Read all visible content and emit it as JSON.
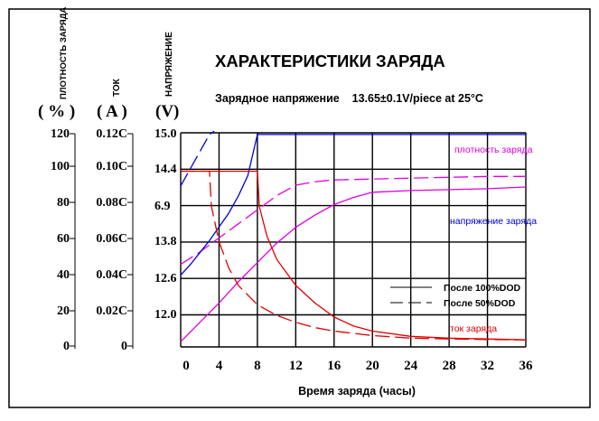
{
  "chart_data": {
    "type": "line",
    "title": "ХАРАКТЕРИСТИКИ ЗАРЯДА",
    "subtitle": "Зарядное напряжение    13.65±0.1V/piece at 25°C",
    "xlabel": "Время заряда (часы)",
    "xlim": [
      0,
      36
    ],
    "x_ticks": [
      "0",
      "4",
      "8",
      "12",
      "16",
      "20",
      "24",
      "28",
      "32",
      "36"
    ],
    "grid": true,
    "axes": {
      "density": {
        "header": "ПЛОТНОСТЬ ЗАРЯДА",
        "unit": "( % )",
        "ticks": [
          "120",
          "100",
          "80",
          "60",
          "40",
          "20",
          "0"
        ]
      },
      "current": {
        "header": "ТОК",
        "unit": "( A )",
        "ticks": [
          "0.12C",
          "0.10C",
          "0.08C",
          "0.06C",
          "0.04C",
          "0.02C",
          "0"
        ]
      },
      "voltage": {
        "header": "НАПРЯЖЕНИЕ",
        "unit": "(V)",
        "ticks": [
          "15.0",
          "14.4",
          "6.9",
          "13.8",
          "12.6",
          "12.0"
        ]
      }
    },
    "legend": {
      "placement": "bottom-right",
      "items": [
        {
          "style": "solid",
          "label": "После 100%DOD"
        },
        {
          "style": "dashed",
          "label": "После 50%DOD"
        }
      ]
    },
    "series": [
      {
        "name": "плотность заряда",
        "color": "#e000e0",
        "dod": "100%",
        "axis": "density",
        "x": [
          0,
          2,
          4,
          6,
          8,
          10,
          12,
          14,
          16,
          18,
          20,
          24,
          28,
          32,
          36
        ],
        "y": [
          3,
          14,
          25,
          37,
          48,
          59,
          68,
          75,
          81,
          85,
          88,
          89,
          89.5,
          90,
          91
        ]
      },
      {
        "name": "плотность заряда",
        "color": "#e000e0",
        "dod": "50%",
        "axis": "density",
        "x": [
          0,
          2,
          4,
          6,
          8,
          10,
          12,
          14,
          16,
          20,
          24,
          28,
          32,
          36
        ],
        "y": [
          47,
          54,
          62,
          70,
          78,
          86,
          92,
          94,
          95,
          95.5,
          96,
          96.5,
          97,
          97
        ]
      },
      {
        "name": "напряжение заряда",
        "color": "#0000e0",
        "dod": "100%",
        "axis": "voltage",
        "level": 6.9,
        "x": [
          0,
          1,
          2,
          3,
          4,
          5,
          6,
          7,
          8,
          8.5,
          12,
          16,
          20,
          24,
          28,
          32,
          36
        ],
        "y": [
          21,
          24,
          27.5,
          31,
          35,
          39,
          44,
          50,
          62,
          62,
          62,
          62,
          62,
          62,
          62,
          62,
          62
        ]
      },
      {
        "name": "напряжение заряда",
        "color": "#0000e0",
        "dod": "50%",
        "axis": "voltage",
        "x": [
          0,
          1,
          2,
          3,
          3.5
        ],
        "y": [
          47,
          52,
          57,
          62,
          63
        ]
      },
      {
        "name": "ток заряда",
        "color": "#e00000",
        "dod": "100%",
        "axis": "current",
        "x": [
          0,
          8,
          8.2,
          9,
          10,
          12,
          14,
          16,
          18,
          20,
          24,
          28,
          32,
          36
        ],
        "y": [
          0.1,
          0.1,
          0.08,
          0.063,
          0.05,
          0.035,
          0.025,
          0.017,
          0.012,
          0.009,
          0.006,
          0.005,
          0.0045,
          0.004
        ]
      },
      {
        "name": "ток заряда",
        "color": "#e00000",
        "dod": "50%",
        "axis": "current",
        "x": [
          0,
          3,
          3.2,
          4,
          5,
          6,
          8,
          10,
          12,
          14,
          16,
          20,
          24,
          28,
          32,
          36
        ],
        "y": [
          0.1,
          0.1,
          0.08,
          0.06,
          0.045,
          0.035,
          0.024,
          0.018,
          0.014,
          0.011,
          0.009,
          0.0065,
          0.005,
          0.0045,
          0.0042,
          0.004
        ]
      }
    ],
    "annotations": [
      {
        "text": "плотность заряда",
        "color": "#e000e0"
      },
      {
        "text": "напряжение заряда",
        "color": "#0000e0"
      },
      {
        "text": "ток заряда",
        "color": "#e00000"
      }
    ]
  }
}
